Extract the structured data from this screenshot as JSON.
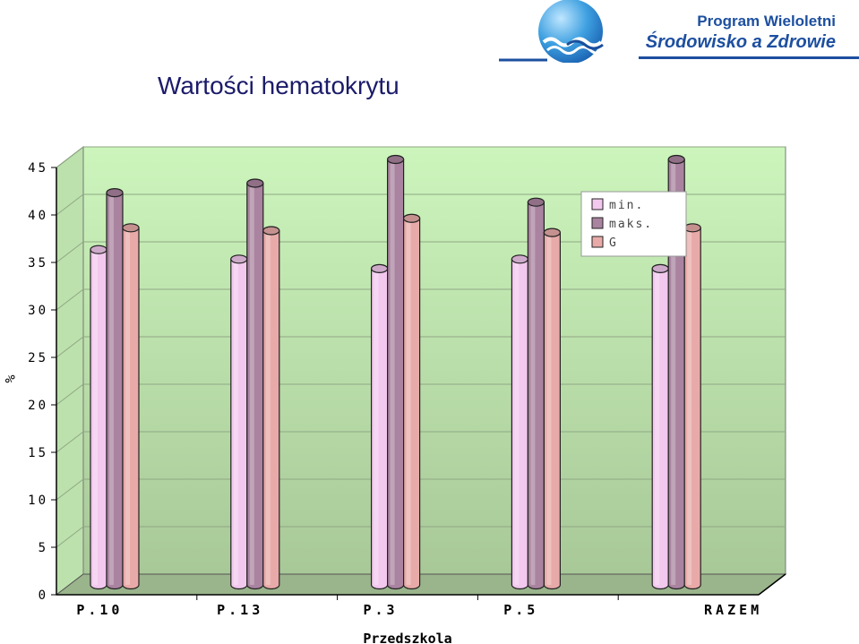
{
  "header": {
    "program_label": "Program Wieloletni",
    "program_name": "Środowisko a Zdrowie",
    "logo_icon": "globe-waves-logo-icon",
    "brand_color": "#1d4fa0"
  },
  "slide": {
    "title": "Wartości hematokrytu"
  },
  "chart_data": {
    "type": "bar",
    "title": "",
    "xlabel": "Przedszkola",
    "ylabel": "%",
    "categories": [
      "P.10",
      "P.13",
      "P.3",
      "P.5",
      "RAZEM"
    ],
    "series": [
      {
        "name": "min.",
        "values": [
          35.5,
          34.5,
          33.5,
          34.5,
          33.5
        ],
        "color": "#f2c8ee"
      },
      {
        "name": "maks.",
        "values": [
          41.5,
          42.5,
          45.0,
          40.5,
          45.0
        ],
        "color": "#a9839f"
      },
      {
        "name": "G",
        "values": [
          37.8,
          37.5,
          38.8,
          37.3,
          37.8
        ],
        "color": "#e8aaa8"
      }
    ],
    "ylim": [
      0,
      45
    ],
    "yticks": [
      0,
      5,
      10,
      15,
      20,
      25,
      30,
      35,
      40,
      45
    ],
    "grid": true,
    "legend_position": "top-right",
    "plot_background_top": "#ccf5bc",
    "plot_background_bottom": "#a8c898",
    "style": "3d-cylinder"
  }
}
